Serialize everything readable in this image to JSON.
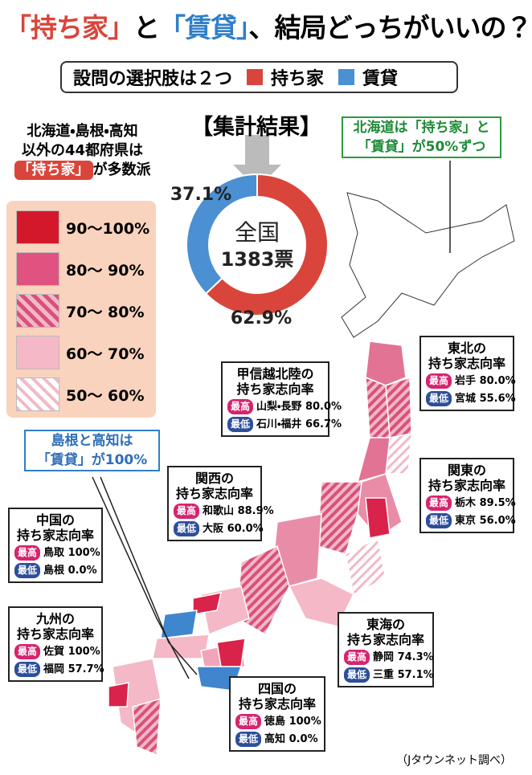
{
  "header": {
    "title": [
      "「持ち家」",
      "と",
      "「賃貸」",
      "、結局どっちがいいの？"
    ],
    "subtitle": "設問の選択肢は２つ",
    "options": [
      "持ち家",
      "賃貸"
    ]
  },
  "result": {
    "heading": "【集計結果】",
    "center": [
      "全国",
      "1383票"
    ],
    "values": [
      62.9,
      37.1
    ],
    "value_labels": [
      "62.9%",
      "37.1%"
    ],
    "colors": [
      "#d9453b",
      "#4a90d2"
    ]
  },
  "note_left": {
    "lines": [
      "北海道・島根・高知",
      "以外の44都府県は"
    ],
    "highlight": "「持ち家」",
    "tail": "が多数派"
  },
  "legend": [
    "90～100%",
    "80～ 90%",
    "70～ 80%",
    "60～ 70%",
    "50～ 60%"
  ],
  "note_hokkaido": [
    "北海道は「持ち家」と",
    "「賃貸」が50%ずつ"
  ],
  "note_shimane": [
    "島根と高知は",
    "「賃貸」が100%"
  ],
  "regions": [
    {
      "title": "東北の",
      "subtitle": "持ち家志向率",
      "high_tag": "最高",
      "high_pref": "岩手",
      "high_value": "80.0%",
      "low_tag": "最低",
      "low_pref": "宮城",
      "low_value": "55.6%"
    },
    {
      "title": "甲信越北陸の",
      "subtitle": "持ち家志向率",
      "high_tag": "最高",
      "high_pref": "山梨・長野",
      "high_value": "80.0%",
      "low_tag": "最低",
      "low_pref": "石川・福井",
      "low_value": "66.7%"
    },
    {
      "title": "関東の",
      "subtitle": "持ち家志向率",
      "high_tag": "最高",
      "high_pref": "栃木",
      "high_value": "89.5%",
      "low_tag": "最低",
      "low_pref": "東京",
      "low_value": "56.0%"
    },
    {
      "title": "関西の",
      "subtitle": "持ち家志向率",
      "high_tag": "最高",
      "high_pref": "和歌山",
      "high_value": "88.9%",
      "low_tag": "最低",
      "low_pref": "大阪",
      "low_value": "60.0%"
    },
    {
      "title": "中国の",
      "subtitle": "持ち家志向率",
      "high_tag": "最高",
      "high_pref": "鳥取",
      "high_value": "100%",
      "low_tag": "最低",
      "low_pref": "島根",
      "low_value": "0.0%"
    },
    {
      "title": "九州の",
      "subtitle": "持ち家志向率",
      "high_tag": "最高",
      "high_pref": "佐賀",
      "high_value": "100%",
      "low_tag": "最低",
      "low_pref": "福岡",
      "low_value": "57.7%"
    },
    {
      "title": "東海の",
      "subtitle": "持ち家志向率",
      "high_tag": "最高",
      "high_pref": "静岡",
      "high_value": "74.3%",
      "low_tag": "最低",
      "low_pref": "三重",
      "low_value": "57.1%"
    },
    {
      "title": "四国の",
      "subtitle": "持ち家志向率",
      "high_tag": "最高",
      "high_pref": "徳島",
      "high_value": "100%",
      "low_tag": "最低",
      "low_pref": "高知",
      "low_value": "0.0%"
    }
  ],
  "source": "（Jタウンネット調べ）"
}
